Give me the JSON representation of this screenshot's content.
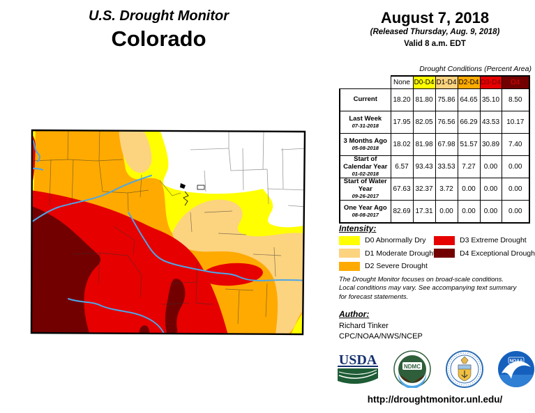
{
  "title": {
    "line1": "U.S. Drought Monitor",
    "line2": "Colorado"
  },
  "date_block": {
    "date": "August 7, 2018",
    "released": "(Released Thursday, Aug. 9, 2018)",
    "valid": "Valid 8 a.m. EDT"
  },
  "table": {
    "caption": "Drought Conditions (Percent Area)",
    "columns": [
      "None",
      "D0-D4",
      "D1-D4",
      "D2-D4",
      "D3-D4",
      "D4"
    ],
    "rows": [
      {
        "label": "Current",
        "date": "",
        "values": [
          "18.20",
          "81.80",
          "75.86",
          "64.65",
          "35.10",
          "8.50"
        ]
      },
      {
        "label": "Last Week",
        "date": "07-31-2018",
        "values": [
          "17.95",
          "82.05",
          "76.56",
          "66.29",
          "43.53",
          "10.17"
        ]
      },
      {
        "label": "3 Months Ago",
        "date": "05-08-2018",
        "values": [
          "18.02",
          "81.98",
          "67.98",
          "51.57",
          "30.89",
          "7.40"
        ]
      },
      {
        "label": "Start of Calendar Year",
        "date": "01-02-2018",
        "values": [
          "6.57",
          "93.43",
          "33.53",
          "7.27",
          "0.00",
          "0.00"
        ]
      },
      {
        "label": "Start of Water Year",
        "date": "09-26-2017",
        "values": [
          "67.63",
          "32.37",
          "3.72",
          "0.00",
          "0.00",
          "0.00"
        ]
      },
      {
        "label": "One Year Ago",
        "date": "08-08-2017",
        "values": [
          "82.69",
          "17.31",
          "0.00",
          "0.00",
          "0.00",
          "0.00"
        ]
      }
    ]
  },
  "intensity": {
    "heading": "Intensity:",
    "items": [
      {
        "code": "D0",
        "label": "D0 Abnormally Dry",
        "color": "#FFFF00"
      },
      {
        "code": "D1",
        "label": "D1 Moderate Drought",
        "color": "#FCD37F"
      },
      {
        "code": "D2",
        "label": "D2 Severe Drought",
        "color": "#FFAA00"
      },
      {
        "code": "D3",
        "label": "D3 Extreme Drought",
        "color": "#E60000"
      },
      {
        "code": "D4",
        "label": "D4 Exceptional Drought",
        "color": "#730000"
      }
    ]
  },
  "disclaimer": {
    "line1": "The Drought Monitor focuses on broad-scale conditions.",
    "line2": "Local conditions may vary. See accompanying text summary",
    "line3": "for forecast statements."
  },
  "author": {
    "heading": "Author:",
    "name": "Richard Tinker",
    "org": "CPC/NOAA/NWS/NCEP"
  },
  "logos": {
    "usda": "USDA",
    "ndmc": "NDMC",
    "noaa": "NOAA"
  },
  "footer": {
    "url": "http://droughtmonitor.unl.edu/"
  },
  "map": {
    "region": "Colorado",
    "colors": {
      "none": "#FFFFFF",
      "d0": "#FFFF00",
      "d1": "#FCD37F",
      "d2": "#FFAA00",
      "d3": "#E60000",
      "d4": "#730000",
      "river": "#4DA6E8",
      "border": "#000000"
    }
  }
}
